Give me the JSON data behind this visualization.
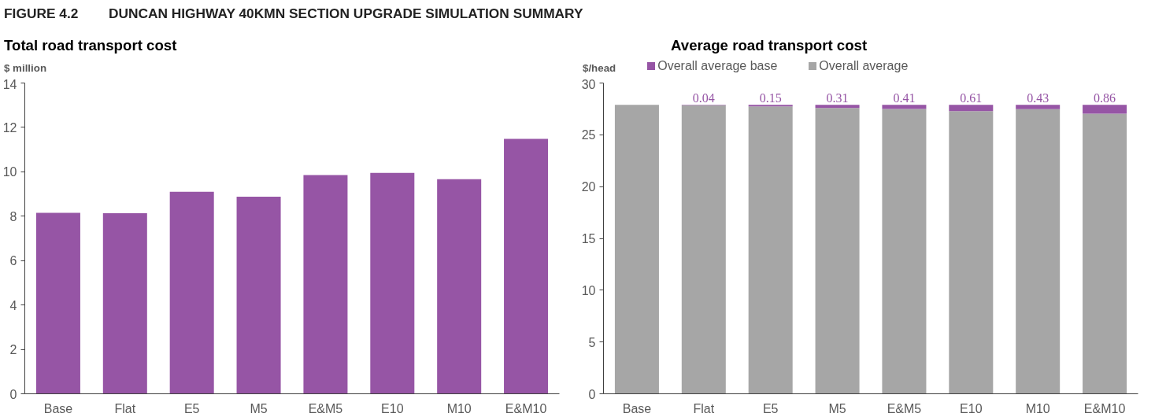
{
  "chart_data": [
    {
      "type": "bar",
      "title": "Total road transport cost",
      "ylabel": "$ million",
      "annotations": [
        "FIGURE 4.2        DUNCAN HIGHWAY 40KMN SECTION UPGRADE SIMULATION SUMMARY"
      ],
      "categories": [
        "Base",
        "Flat",
        "E5",
        "M5",
        "E&M5",
        "E10",
        "M10",
        "E&M10"
      ],
      "values": [
        8.15,
        8.13,
        9.1,
        8.88,
        9.85,
        9.95,
        9.67,
        11.48
      ],
      "color": "#9655a5",
      "ylim": [
        0,
        14
      ],
      "yticks": [
        0,
        2,
        4,
        6,
        8,
        10,
        12,
        14
      ],
      "grid": false
    },
    {
      "type": "bar",
      "title": "Average road transport cost",
      "ylabel": "$/head",
      "categories": [
        "Base",
        "Flat",
        "E5",
        "M5",
        "E&M5",
        "E10",
        "M10",
        "E&M10"
      ],
      "stacked": true,
      "legend": "top",
      "grid": false,
      "ylim": [
        0,
        30
      ],
      "yticks": [
        0,
        5,
        10,
        15,
        20,
        25,
        30
      ],
      "series": [
        {
          "name": "Overall average",
          "color": "#a6a6a6",
          "values": [
            27.9,
            27.86,
            27.75,
            27.59,
            27.49,
            27.29,
            27.47,
            27.04
          ]
        },
        {
          "name": "Overall average base",
          "color": "#9655a5",
          "values": [
            0,
            0.04,
            0.15,
            0.31,
            0.41,
            0.61,
            0.43,
            0.86
          ],
          "value_labels": [
            null,
            "0.04",
            "0.15",
            "0.31",
            "0.41",
            "0.61",
            "0.43",
            "0.86"
          ]
        }
      ]
    }
  ]
}
